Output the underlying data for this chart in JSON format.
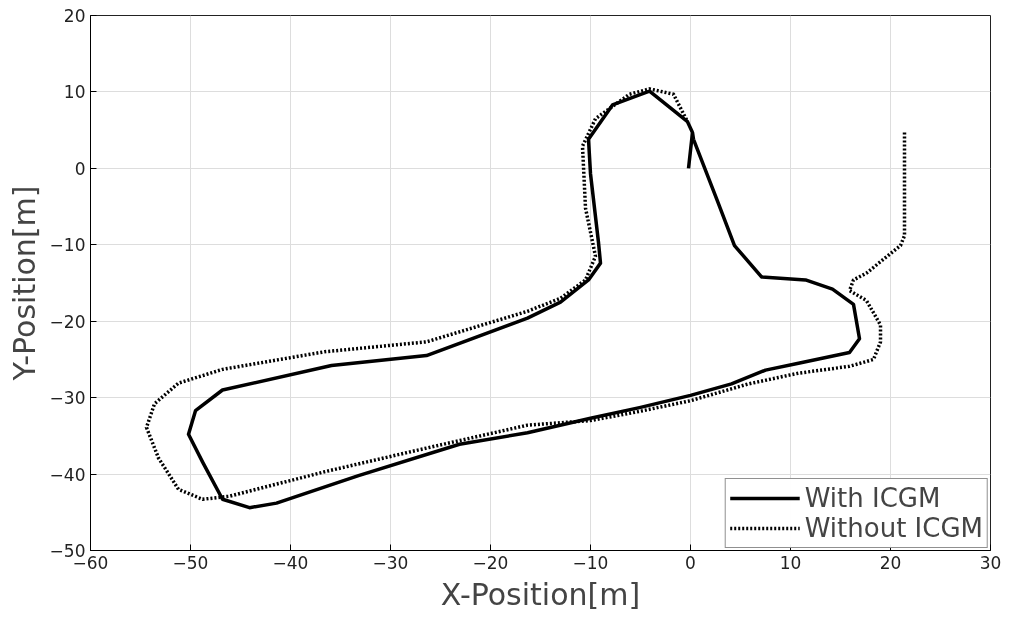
{
  "chart_data": {
    "type": "line",
    "xlabel": "X-Position[m]",
    "ylabel": "Y-Position[m]",
    "xlim": [
      -60,
      30
    ],
    "ylim": [
      -50,
      20
    ],
    "xticks": [
      -60,
      -50,
      -40,
      -30,
      -20,
      -10,
      0,
      10,
      20,
      30
    ],
    "yticks": [
      -50,
      -40,
      -30,
      -20,
      -10,
      0,
      10,
      20
    ],
    "grid": true,
    "legend": "bottom right",
    "series": [
      {
        "name": "With ICGM",
        "color": "#000000",
        "line_style": "solid",
        "x": [
          -0.2,
          0.2,
          0.3,
          2.7,
          4.4,
          7.1,
          11.5,
          14.2,
          16.3,
          16.9,
          15.9,
          10.8,
          7.5,
          4.1,
          0,
          -5.1,
          -10,
          -16.3,
          -23.1,
          -33.2,
          -41.4,
          -44.1,
          -46.8,
          -48.8,
          -50.2,
          -49.5,
          -46.8,
          -35.9,
          -26.4,
          -16.3,
          -13,
          -10.2,
          -9,
          -9.2,
          -10,
          -10.2,
          -7.8,
          -4.1,
          -0.3,
          0.2
        ],
        "values": [
          0,
          4.7,
          3.8,
          -4.3,
          -10.1,
          -14.2,
          -14.6,
          -15.8,
          -17.8,
          -22.3,
          -24.1,
          -25.5,
          -26.4,
          -28.2,
          -29.7,
          -31.3,
          -32.7,
          -34.6,
          -36.1,
          -40.2,
          -43.8,
          -44.4,
          -43.3,
          -38.4,
          -34.8,
          -31.7,
          -29,
          -25.8,
          -24.5,
          -19.6,
          -17.5,
          -14.6,
          -12.4,
          -9.7,
          -0.7,
          3.8,
          8.3,
          10.1,
          6.1,
          4.7
        ]
      },
      {
        "name": "Without ICGM",
        "color": "#000000",
        "line_style": "dotted",
        "x": [
          21.4,
          21.4,
          21,
          17.6,
          16.3,
          15.9,
          17.6,
          19,
          19,
          18.3,
          15.9,
          10.8,
          5.8,
          0,
          -5.1,
          -10,
          -16.3,
          -26.4,
          -36.6,
          -46.1,
          -48.8,
          -51.2,
          -53.2,
          -54.4,
          -53.6,
          -51.2,
          -46.8,
          -36.6,
          -26.4,
          -16.3,
          -13,
          -10.5,
          -9.5,
          -10.5,
          -10.8,
          -9.5,
          -6.1,
          -4.1,
          -1.7,
          -0.3
        ],
        "values": [
          4.7,
          -8.8,
          -10.1,
          -13.7,
          -14.6,
          -16,
          -17.3,
          -20.5,
          -22.7,
          -25,
          -25.9,
          -26.8,
          -28.2,
          -30.4,
          -31.8,
          -33,
          -33.6,
          -36.6,
          -39.7,
          -42.9,
          -43.3,
          -42,
          -37.9,
          -33.9,
          -30.8,
          -28.1,
          -26.3,
          -24,
          -22.7,
          -18.7,
          -17,
          -14.6,
          -11.5,
          -5.2,
          2.9,
          6.5,
          9.7,
          10.4,
          9.7,
          6.1
        ]
      }
    ]
  }
}
